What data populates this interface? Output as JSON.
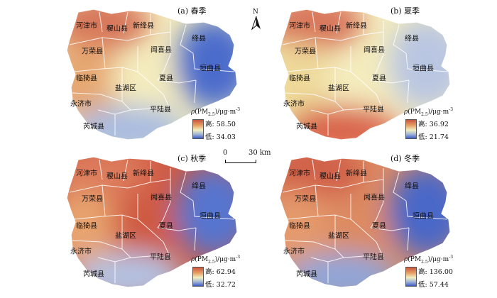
{
  "north_label": "N",
  "scale": {
    "zero": "0",
    "distance": "30 km"
  },
  "counties": [
    "河津市",
    "稷山县",
    "新绛县",
    "万荣县",
    "闻喜县",
    "绛县",
    "临猗县",
    "盐湖区",
    "夏县",
    "垣曲县",
    "永济市",
    "平陆县",
    "芮城县"
  ],
  "panels": [
    {
      "title": "(a) 春季",
      "legend_title": "(PM",
      "legend_sub": "2.5",
      "legend_unit": ")/μg·m",
      "legend_sup": "-3",
      "high": "高: 58.50",
      "low": "低: 34.03",
      "colors": {
        "nw": "#d7765a",
        "west": "#e6a872",
        "center": "#f4ecbd",
        "east": "#4c6ccc",
        "south": "#a9bce0"
      }
    },
    {
      "title": "(b) 夏季",
      "legend_title": "(PM",
      "legend_sub": "2.5",
      "legend_unit": ")/μg·m",
      "legend_sup": "-3",
      "high": "高: 36.92",
      "low": "低: 21.74",
      "colors": {
        "nw": "#d8745a",
        "west": "#eed99a",
        "center": "#f4ecbd",
        "east": "#b9c6e2",
        "south": "#d9624a"
      }
    },
    {
      "title": "(c) 秋季",
      "legend_title": "(PM",
      "legend_sub": "2.5",
      "legend_unit": ")/μg·m",
      "legend_sup": "-3",
      "high": "高: 62.94",
      "low": "低: 32.72",
      "colors": {
        "nw": "#dc7a5c",
        "west": "#e7a36e",
        "center": "#cf5a42",
        "east": "#5674cf",
        "south": "#b3c2e2"
      }
    },
    {
      "title": "(d) 冬季",
      "legend_title": "(PM",
      "legend_sub": "2.5",
      "legend_unit": ")/μg·m",
      "legend_sup": "-3",
      "high": "高: 136.00",
      "low": "低: 57.44",
      "colors": {
        "nw": "#d06048",
        "west": "#e49a6c",
        "center": "#dc8a62",
        "east": "#4a68c8",
        "south": "#8fa6d8"
      }
    }
  ]
}
